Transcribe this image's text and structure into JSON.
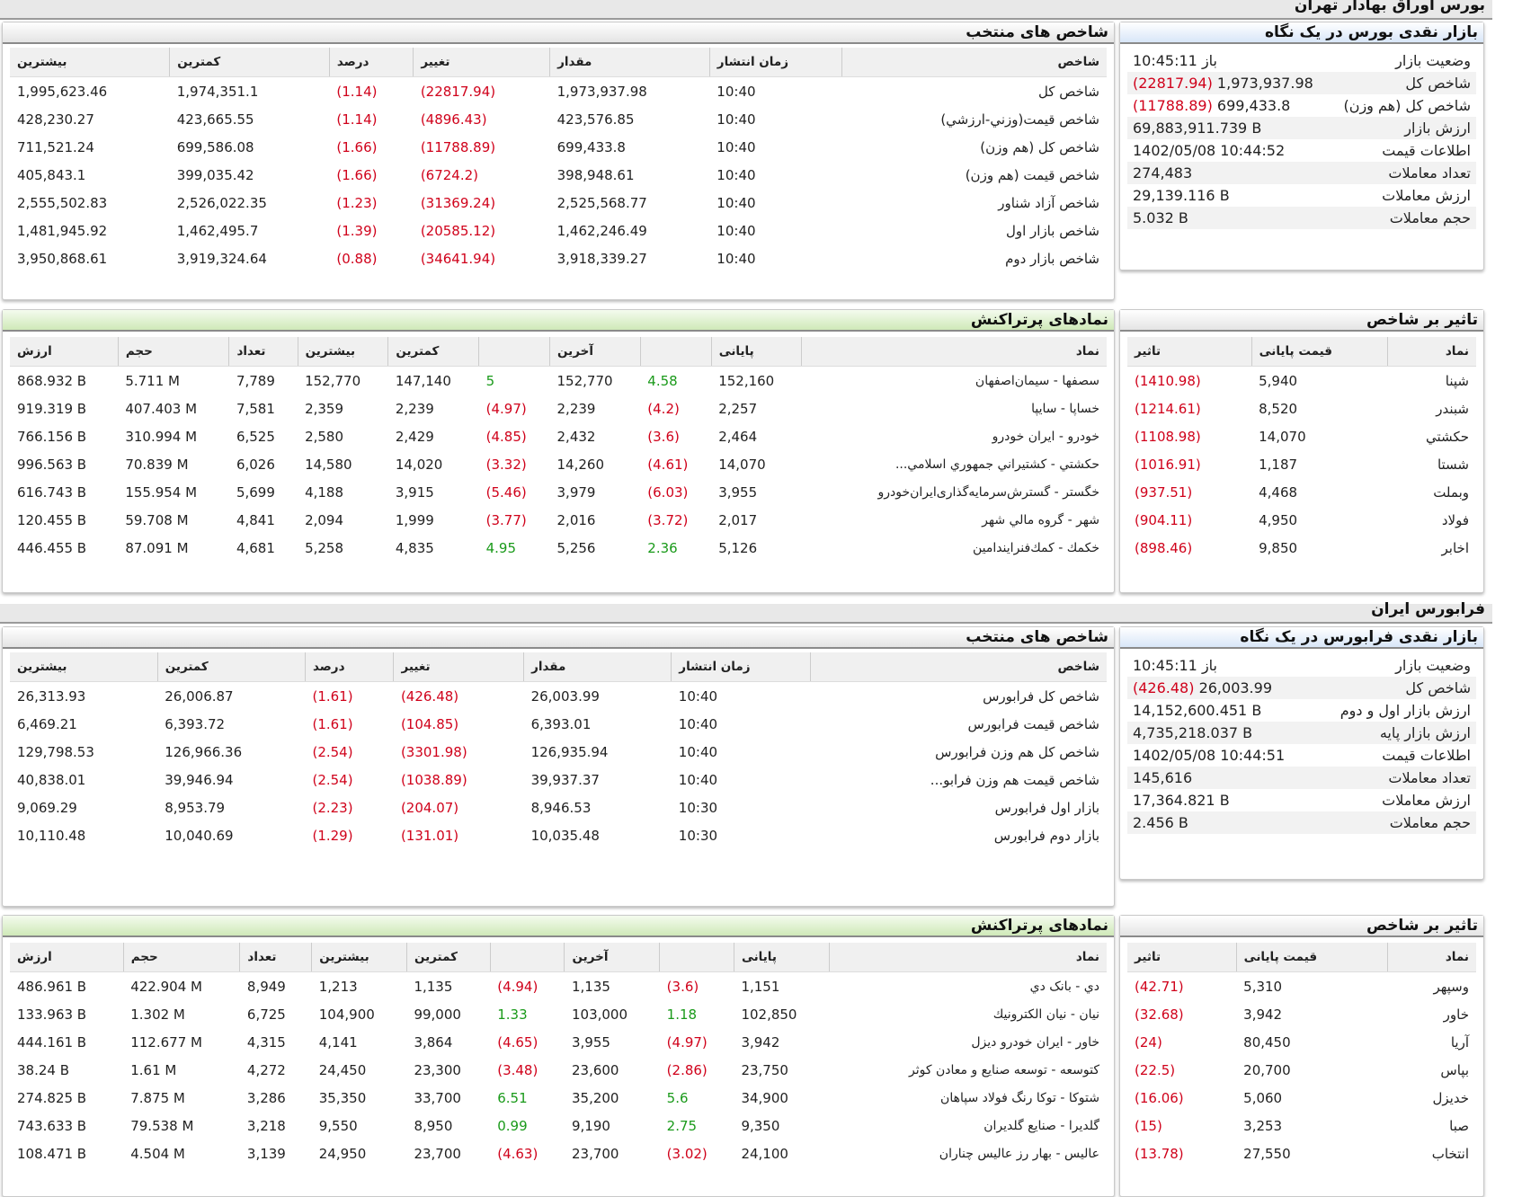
{
  "tehran": {
    "title": "بورس اوراق بهادار تهران",
    "summary": {
      "title": "بازار نقدی بورس در یک نگاه",
      "rows": [
        {
          "label": "وضعیت بازار",
          "value": "باز 10:45:11",
          "extra": ""
        },
        {
          "label": "شاخص کل",
          "value": "1,973,937.98",
          "extra": "(22817.94)"
        },
        {
          "label": "شاخص کل (هم وزن)",
          "value": "699,433.8",
          "extra": "(11788.89)"
        },
        {
          "label": "ارزش بازار",
          "value": "69,883,911.739 B",
          "extra": ""
        },
        {
          "label": "اطلاعات قیمت",
          "value": "1402/05/08 10:44:52",
          "extra": ""
        },
        {
          "label": "تعداد معاملات",
          "value": "274,483",
          "extra": ""
        },
        {
          "label": "ارزش معاملات",
          "value": "29,139.116 B",
          "extra": ""
        },
        {
          "label": "حجم معاملات",
          "value": "5.032 B",
          "extra": ""
        }
      ]
    },
    "indices": {
      "title": "شاخص های منتخب",
      "headers": {
        "name": "شاخص",
        "time": "زمان انتشار",
        "value": "مقدار",
        "change": "تغییر",
        "percent": "درصد",
        "min": "کمترین",
        "max": "بیشترین"
      },
      "rows": [
        {
          "name": "شاخص كل",
          "time": "10:40",
          "value": "1,973,937.98",
          "change": "(22817.94)",
          "percent": "(1.14)",
          "min": "1,974,351.1",
          "max": "1,995,623.46"
        },
        {
          "name": "شاخص قيمت(وزني-ارزشي)",
          "time": "10:40",
          "value": "423,576.85",
          "change": "(4896.43)",
          "percent": "(1.14)",
          "min": "423,665.55",
          "max": "428,230.27"
        },
        {
          "name": "شاخص كل (هم وزن)",
          "time": "10:40",
          "value": "699,433.8",
          "change": "(11788.89)",
          "percent": "(1.66)",
          "min": "699,586.08",
          "max": "711,521.24"
        },
        {
          "name": "شاخص قيمت (هم وزن)",
          "time": "10:40",
          "value": "398,948.61",
          "change": "(6724.2)",
          "percent": "(1.66)",
          "min": "399,035.42",
          "max": "405,843.1"
        },
        {
          "name": "شاخص آزاد شناور",
          "time": "10:40",
          "value": "2,525,568.77",
          "change": "(31369.24)",
          "percent": "(1.23)",
          "min": "2,526,022.35",
          "max": "2,555,502.83"
        },
        {
          "name": "شاخص بازار اول",
          "time": "10:40",
          "value": "1,462,246.49",
          "change": "(20585.12)",
          "percent": "(1.39)",
          "min": "1,462,495.7",
          "max": "1,481,945.92"
        },
        {
          "name": "شاخص بازار دوم",
          "time": "10:40",
          "value": "3,918,339.27",
          "change": "(34641.94)",
          "percent": "(0.88)",
          "min": "3,919,324.64",
          "max": "3,950,868.61"
        }
      ]
    },
    "impact": {
      "title": "تاثیر بر شاخص",
      "headers": {
        "symbol": "نماد",
        "price": "قیمت پایانی",
        "effect": "تاثیر"
      },
      "rows": [
        {
          "symbol": "شپنا",
          "price": "5,940",
          "effect": "(1410.98)"
        },
        {
          "symbol": "شبندر",
          "price": "8,520",
          "effect": "(1214.61)"
        },
        {
          "symbol": "حکشتي",
          "price": "14,070",
          "effect": "(1108.98)"
        },
        {
          "symbol": "شستا",
          "price": "1,187",
          "effect": "(1016.91)"
        },
        {
          "symbol": "وبملت",
          "price": "4,468",
          "effect": "(937.51)"
        },
        {
          "symbol": "فولاد",
          "price": "4,950",
          "effect": "(904.11)"
        },
        {
          "symbol": "اخابر",
          "price": "9,850",
          "effect": "(898.46)"
        }
      ]
    },
    "active": {
      "title": "نمادهای پرتراکنش",
      "headers": {
        "symbol": "نماد",
        "close": "پایانی",
        "close_chg": "",
        "last": "آخرین",
        "last_chg": "",
        "min": "کمترین",
        "max": "بیشترین",
        "count": "تعداد",
        "volume": "حجم",
        "value": "ارزش"
      },
      "rows": [
        {
          "symbol": "سصفها - سیمان‌اصفهان",
          "close": "152,160",
          "close_chg": "4.58",
          "last": "152,770",
          "last_chg": "5",
          "min": "147,140",
          "max": "152,770",
          "count": "7,789",
          "volume": "5.711 M",
          "value": "868.932 B"
        },
        {
          "symbol": "خساپا - سایپا",
          "close": "2,257",
          "close_chg": "(4.2)",
          "last": "2,239",
          "last_chg": "(4.97)",
          "min": "2,239",
          "max": "2,359",
          "count": "7,581",
          "volume": "407.403 M",
          "value": "919.319 B"
        },
        {
          "symbol": "خودرو - ایران‌ خودرو",
          "close": "2,464",
          "close_chg": "(3.6)",
          "last": "2,432",
          "last_chg": "(4.85)",
          "min": "2,429",
          "max": "2,580",
          "count": "6,525",
          "volume": "310.994 M",
          "value": "766.156 B"
        },
        {
          "symbol": "حکشتي - كشتيراني جمهوري اسلامي...",
          "close": "14,070",
          "close_chg": "(4.61)",
          "last": "14,260",
          "last_chg": "(3.32)",
          "min": "14,020",
          "max": "14,580",
          "count": "6,026",
          "volume": "70.839 M",
          "value": "996.563 B"
        },
        {
          "symbol": "خگستر - گسترش‌سرمایه‌گذاری‌ایران‌خودرو",
          "close": "3,955",
          "close_chg": "(6.03)",
          "last": "3,979",
          "last_chg": "(5.46)",
          "min": "3,915",
          "max": "4,188",
          "count": "5,699",
          "volume": "155.954 M",
          "value": "616.743 B"
        },
        {
          "symbol": "شهر - گروه مالي شهر",
          "close": "2,017",
          "close_chg": "(3.72)",
          "last": "2,016",
          "last_chg": "(3.77)",
          "min": "1,999",
          "max": "2,094",
          "count": "4,841",
          "volume": "59.708 M",
          "value": "120.455 B"
        },
        {
          "symbol": "خكمك - كمك‌فنرايندامين",
          "close": "5,126",
          "close_chg": "2.36",
          "last": "5,256",
          "last_chg": "4.95",
          "min": "4,835",
          "max": "5,258",
          "count": "4,681",
          "volume": "87.091 M",
          "value": "446.455 B"
        }
      ]
    }
  },
  "farabourse": {
    "title": "فرابورس ایران",
    "summary": {
      "title": "بازار نقدی فرابورس در یک نگاه",
      "rows": [
        {
          "label": "وضعیت بازار",
          "value": "باز 10:45:11",
          "extra": ""
        },
        {
          "label": "شاخص کل",
          "value": "26,003.99",
          "extra": "(426.48)"
        },
        {
          "label": "ارزش بازار اول و دوم",
          "value": "14,152,600.451 B",
          "extra": ""
        },
        {
          "label": "ارزش بازار پایه",
          "value": "4,735,218.037 B",
          "extra": ""
        },
        {
          "label": "اطلاعات قیمت",
          "value": "1402/05/08 10:44:51",
          "extra": ""
        },
        {
          "label": "تعداد معاملات",
          "value": "145,616",
          "extra": ""
        },
        {
          "label": "ارزش معاملات",
          "value": "17,364.821 B",
          "extra": ""
        },
        {
          "label": "حجم معاملات",
          "value": "2.456 B",
          "extra": ""
        }
      ]
    },
    "indices": {
      "title": "شاخص های منتخب",
      "headers": {
        "name": "شاخص",
        "time": "زمان انتشار",
        "value": "مقدار",
        "change": "تغییر",
        "percent": "درصد",
        "min": "کمترین",
        "max": "بیشترین"
      },
      "rows": [
        {
          "name": "شاخص كل فرابورس",
          "time": "10:40",
          "value": "26,003.99",
          "change": "(426.48)",
          "percent": "(1.61)",
          "min": "26,006.87",
          "max": "26,313.93"
        },
        {
          "name": "شاخص قيمت فرابورس",
          "time": "10:40",
          "value": "6,393.01",
          "change": "(104.85)",
          "percent": "(1.61)",
          "min": "6,393.72",
          "max": "6,469.21"
        },
        {
          "name": "شاخص كل هم وزن فرابورس",
          "time": "10:40",
          "value": "126,935.94",
          "change": "(3301.98)",
          "percent": "(2.54)",
          "min": "126,966.36",
          "max": "129,798.53"
        },
        {
          "name": "شاخص قيمت هم وزن فرابو...",
          "time": "10:40",
          "value": "39,937.37",
          "change": "(1038.89)",
          "percent": "(2.54)",
          "min": "39,946.94",
          "max": "40,838.01"
        },
        {
          "name": "بازار اول فرابورس",
          "time": "10:30",
          "value": "8,946.53",
          "change": "(204.07)",
          "percent": "(2.23)",
          "min": "8,953.79",
          "max": "9,069.29"
        },
        {
          "name": "بازار دوم فرابورس",
          "time": "10:30",
          "value": "10,035.48",
          "change": "(131.01)",
          "percent": "(1.29)",
          "min": "10,040.69",
          "max": "10,110.48"
        }
      ]
    },
    "impact": {
      "title": "تاثیر بر شاخص",
      "headers": {
        "symbol": "نماد",
        "price": "قیمت پایانی",
        "effect": "تاثیر"
      },
      "rows": [
        {
          "symbol": "وسپهر",
          "price": "5,310",
          "effect": "(42.71)"
        },
        {
          "symbol": "خاور",
          "price": "3,942",
          "effect": "(32.68)"
        },
        {
          "symbol": "آريا",
          "price": "80,450",
          "effect": "(24)"
        },
        {
          "symbol": "بپاس",
          "price": "20,700",
          "effect": "(22.5)"
        },
        {
          "symbol": "خديزل",
          "price": "5,060",
          "effect": "(16.06)"
        },
        {
          "symbol": "صبا",
          "price": "3,253",
          "effect": "(15)"
        },
        {
          "symbol": "انتخاب",
          "price": "27,550",
          "effect": "(13.78)"
        }
      ]
    },
    "active": {
      "title": "نمادهای پرتراکنش",
      "headers": {
        "symbol": "نماد",
        "close": "پایانی",
        "close_chg": "",
        "last": "آخرین",
        "last_chg": "",
        "min": "کمترین",
        "max": "بیشترین",
        "count": "تعداد",
        "volume": "حجم",
        "value": "ارزش"
      },
      "rows": [
        {
          "symbol": "دي - بانک دي",
          "close": "1,151",
          "close_chg": "(3.6)",
          "last": "1,135",
          "last_chg": "(4.94)",
          "min": "1,135",
          "max": "1,213",
          "count": "8,949",
          "volume": "422.904 M",
          "value": "486.961 B"
        },
        {
          "symbol": "نيان - نيان الكترونيك",
          "close": "102,850",
          "close_chg": "1.18",
          "last": "103,000",
          "last_chg": "1.33",
          "min": "99,000",
          "max": "104,900",
          "count": "6,725",
          "volume": "1.302 M",
          "value": "133.963 B"
        },
        {
          "symbol": "خاور - ايران‌ خودرو ديزل",
          "close": "3,942",
          "close_chg": "(4.97)",
          "last": "3,955",
          "last_chg": "(4.65)",
          "min": "3,864",
          "max": "4,141",
          "count": "4,315",
          "volume": "112.677 M",
          "value": "444.161 B"
        },
        {
          "symbol": "كتوسعه - توسعه صنايع و معادن كوثر",
          "close": "23,750",
          "close_chg": "(2.86)",
          "last": "23,600",
          "last_chg": "(3.48)",
          "min": "23,300",
          "max": "24,450",
          "count": "4,272",
          "volume": "1.61 M",
          "value": "38.24 B"
        },
        {
          "symbol": "شتوكا - توكا رنگ فولاد سپاهان",
          "close": "34,900",
          "close_chg": "5.6",
          "last": "35,200",
          "last_chg": "6.51",
          "min": "33,700",
          "max": "35,350",
          "count": "3,286",
          "volume": "7.875 M",
          "value": "274.825 B"
        },
        {
          "symbol": "گلديرا - صنايع گلديران",
          "close": "9,350",
          "close_chg": "2.75",
          "last": "9,190",
          "last_chg": "0.99",
          "min": "8,950",
          "max": "9,550",
          "count": "3,218",
          "volume": "79.538 M",
          "value": "743.633 B"
        },
        {
          "symbol": "عاليس - بهار رز عاليس چناران",
          "close": "24,100",
          "close_chg": "(3.02)",
          "last": "23,700",
          "last_chg": "(4.63)",
          "min": "23,700",
          "max": "24,950",
          "count": "3,139",
          "volume": "4.504 M",
          "value": "108.471 B"
        }
      ]
    }
  },
  "colors": {
    "negative": "#d0021b",
    "positive": "#1a9a1a",
    "header_blue": "#d8e6f8",
    "header_green": "#cfe9b8"
  }
}
